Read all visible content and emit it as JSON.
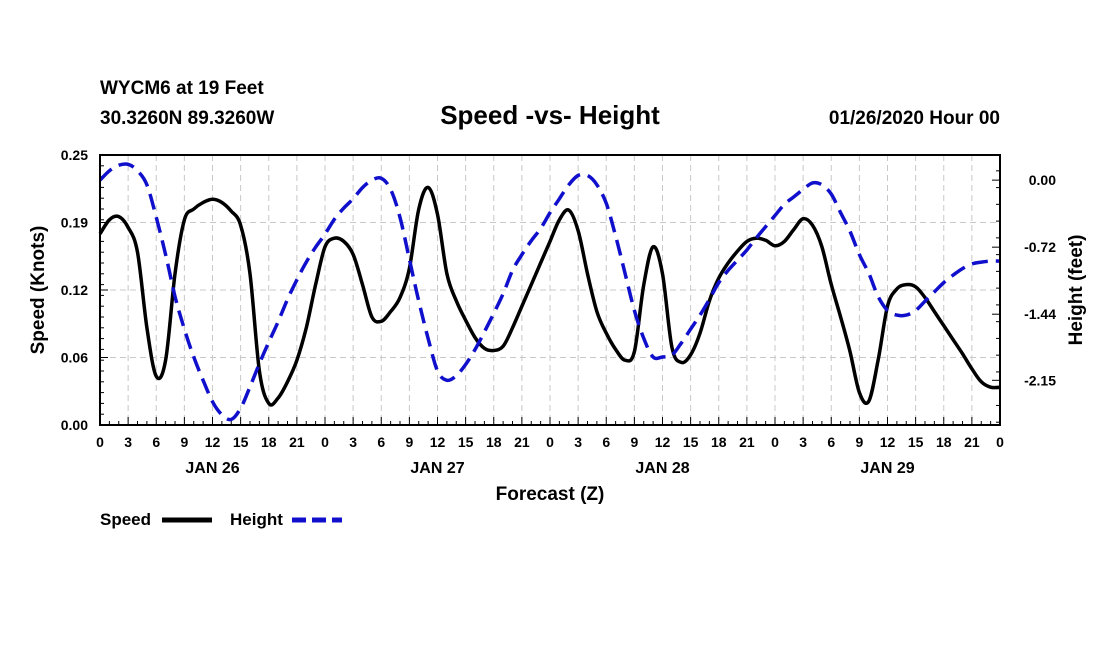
{
  "header": {
    "station_line": "WYCM6 at 19 Feet",
    "coords_line": "30.3260N 89.3260W",
    "title": "Speed -vs- Height",
    "run_time": "01/26/2020 Hour 00"
  },
  "chart_data": {
    "type": "line",
    "title": "Speed -vs- Height",
    "xlabel": "Forecast (Z)",
    "ylabel_left": "Speed (Knots)",
    "ylabel_right": "Height (feet)",
    "x_range_hours": [
      0,
      96
    ],
    "x_tick_step_hours": 3,
    "x_tick_labels": [
      "0",
      "3",
      "6",
      "9",
      "12",
      "15",
      "18",
      "21",
      "0",
      "3",
      "6",
      "9",
      "12",
      "15",
      "18",
      "21",
      "0",
      "3",
      "6",
      "9",
      "12",
      "15",
      "18",
      "21",
      "0",
      "3",
      "6",
      "9",
      "12",
      "15",
      "18",
      "21",
      "0"
    ],
    "day_labels": [
      {
        "hour": 12,
        "label": "JAN 26"
      },
      {
        "hour": 36,
        "label": "JAN 27"
      },
      {
        "hour": 60,
        "label": "JAN 28"
      },
      {
        "hour": 84,
        "label": "JAN 29"
      }
    ],
    "y_left_range": [
      0,
      0.25
    ],
    "y_left_ticks": [
      "0.00",
      "0.06",
      "0.12",
      "0.19",
      "0.25"
    ],
    "y_right_range": [
      -2.63,
      0.27
    ],
    "y_right_ticks": [
      {
        "value": 0.0,
        "label": "0.00"
      },
      {
        "value": -0.72,
        "label": "-0.72"
      },
      {
        "value": -1.44,
        "label": "-1.44"
      },
      {
        "value": -2.15,
        "label": "-2.15"
      }
    ],
    "grid": true,
    "series": [
      {
        "name": "Speed",
        "axis": "left",
        "color": "#000000",
        "dash": "solid",
        "points": [
          [
            0,
            0.177
          ],
          [
            1,
            0.19
          ],
          [
            2,
            0.193
          ],
          [
            3,
            0.183
          ],
          [
            4,
            0.16
          ],
          [
            5,
            0.09
          ],
          [
            6,
            0.045
          ],
          [
            7,
            0.06
          ],
          [
            8,
            0.14
          ],
          [
            9,
            0.19
          ],
          [
            10,
            0.2
          ],
          [
            11,
            0.206
          ],
          [
            12,
            0.209
          ],
          [
            13,
            0.206
          ],
          [
            14,
            0.198
          ],
          [
            15,
            0.185
          ],
          [
            16,
            0.14
          ],
          [
            17,
            0.05
          ],
          [
            18,
            0.02
          ],
          [
            19,
            0.025
          ],
          [
            20,
            0.04
          ],
          [
            21,
            0.06
          ],
          [
            22,
            0.09
          ],
          [
            23,
            0.13
          ],
          [
            24,
            0.165
          ],
          [
            25,
            0.173
          ],
          [
            26,
            0.17
          ],
          [
            27,
            0.158
          ],
          [
            28,
            0.13
          ],
          [
            29,
            0.1
          ],
          [
            30,
            0.096
          ],
          [
            31,
            0.105
          ],
          [
            32,
            0.118
          ],
          [
            33,
            0.145
          ],
          [
            34,
            0.2
          ],
          [
            35,
            0.22
          ],
          [
            36,
            0.195
          ],
          [
            37,
            0.14
          ],
          [
            38,
            0.115
          ],
          [
            39,
            0.097
          ],
          [
            40,
            0.081
          ],
          [
            41,
            0.071
          ],
          [
            42,
            0.069
          ],
          [
            43,
            0.073
          ],
          [
            44,
            0.09
          ],
          [
            45,
            0.11
          ],
          [
            46,
            0.13
          ],
          [
            47,
            0.15
          ],
          [
            48,
            0.17
          ],
          [
            49,
            0.19
          ],
          [
            50,
            0.199
          ],
          [
            51,
            0.18
          ],
          [
            52,
            0.14
          ],
          [
            53,
            0.105
          ],
          [
            54,
            0.085
          ],
          [
            55,
            0.07
          ],
          [
            56,
            0.06
          ],
          [
            57,
            0.068
          ],
          [
            58,
            0.13
          ],
          [
            59,
            0.165
          ],
          [
            60,
            0.14
          ],
          [
            61,
            0.072
          ],
          [
            62,
            0.058
          ],
          [
            63,
            0.065
          ],
          [
            64,
            0.085
          ],
          [
            65,
            0.115
          ],
          [
            66,
            0.136
          ],
          [
            67,
            0.15
          ],
          [
            68,
            0.161
          ],
          [
            69,
            0.17
          ],
          [
            70,
            0.173
          ],
          [
            71,
            0.171
          ],
          [
            72,
            0.166
          ],
          [
            73,
            0.17
          ],
          [
            74,
            0.181
          ],
          [
            75,
            0.191
          ],
          [
            76,
            0.185
          ],
          [
            77,
            0.165
          ],
          [
            78,
            0.13
          ],
          [
            79,
            0.1
          ],
          [
            80,
            0.068
          ],
          [
            81,
            0.03
          ],
          [
            82,
            0.022
          ],
          [
            83,
            0.06
          ],
          [
            84,
            0.11
          ],
          [
            85,
            0.126
          ],
          [
            86,
            0.13
          ],
          [
            87,
            0.128
          ],
          [
            88,
            0.118
          ],
          [
            89,
            0.105
          ],
          [
            90,
            0.092
          ],
          [
            91,
            0.079
          ],
          [
            92,
            0.066
          ],
          [
            93,
            0.052
          ],
          [
            94,
            0.04
          ],
          [
            95,
            0.035
          ],
          [
            96,
            0.035
          ]
        ]
      },
      {
        "name": "Height",
        "axis": "right",
        "color": "#1010cc",
        "dash": "dashed",
        "points": [
          [
            0,
            0.0
          ],
          [
            1,
            0.1
          ],
          [
            2,
            0.16
          ],
          [
            3,
            0.17
          ],
          [
            4,
            0.1
          ],
          [
            5,
            -0.05
          ],
          [
            6,
            -0.4
          ],
          [
            7,
            -0.8
          ],
          [
            8,
            -1.25
          ],
          [
            9,
            -1.6
          ],
          [
            10,
            -1.9
          ],
          [
            11,
            -2.15
          ],
          [
            12,
            -2.38
          ],
          [
            13,
            -2.52
          ],
          [
            14,
            -2.57
          ],
          [
            15,
            -2.45
          ],
          [
            16,
            -2.22
          ],
          [
            17,
            -1.97
          ],
          [
            18,
            -1.74
          ],
          [
            19,
            -1.52
          ],
          [
            20,
            -1.28
          ],
          [
            21,
            -1.07
          ],
          [
            22,
            -0.88
          ],
          [
            23,
            -0.72
          ],
          [
            24,
            -0.58
          ],
          [
            25,
            -0.42
          ],
          [
            26,
            -0.3
          ],
          [
            27,
            -0.2
          ],
          [
            28,
            -0.08
          ],
          [
            29,
            0.0
          ],
          [
            30,
            0.02
          ],
          [
            31,
            -0.1
          ],
          [
            32,
            -0.4
          ],
          [
            33,
            -0.85
          ],
          [
            34,
            -1.3
          ],
          [
            35,
            -1.7
          ],
          [
            36,
            -2.05
          ],
          [
            37,
            -2.15
          ],
          [
            38,
            -2.1
          ],
          [
            39,
            -1.98
          ],
          [
            40,
            -1.82
          ],
          [
            41,
            -1.63
          ],
          [
            42,
            -1.43
          ],
          [
            43,
            -1.22
          ],
          [
            44,
            -0.97
          ],
          [
            45,
            -0.8
          ],
          [
            46,
            -0.65
          ],
          [
            47,
            -0.52
          ],
          [
            48,
            -0.35
          ],
          [
            49,
            -0.2
          ],
          [
            50,
            -0.05
          ],
          [
            51,
            0.05
          ],
          [
            52,
            0.05
          ],
          [
            53,
            -0.05
          ],
          [
            54,
            -0.25
          ],
          [
            55,
            -0.6
          ],
          [
            56,
            -1.0
          ],
          [
            57,
            -1.4
          ],
          [
            58,
            -1.7
          ],
          [
            59,
            -1.9
          ],
          [
            60,
            -1.9
          ],
          [
            61,
            -1.88
          ],
          [
            62,
            -1.75
          ],
          [
            63,
            -1.6
          ],
          [
            64,
            -1.45
          ],
          [
            65,
            -1.28
          ],
          [
            66,
            -1.1
          ],
          [
            67,
            -0.97
          ],
          [
            68,
            -0.86
          ],
          [
            69,
            -0.75
          ],
          [
            70,
            -0.62
          ],
          [
            71,
            -0.5
          ],
          [
            72,
            -0.38
          ],
          [
            73,
            -0.26
          ],
          [
            74,
            -0.18
          ],
          [
            75,
            -0.1
          ],
          [
            76,
            -0.03
          ],
          [
            77,
            -0.05
          ],
          [
            78,
            -0.15
          ],
          [
            79,
            -0.35
          ],
          [
            80,
            -0.55
          ],
          [
            81,
            -0.8
          ],
          [
            82,
            -1.0
          ],
          [
            83,
            -1.25
          ],
          [
            84,
            -1.4
          ],
          [
            85,
            -1.45
          ],
          [
            86,
            -1.45
          ],
          [
            87,
            -1.4
          ],
          [
            88,
            -1.3
          ],
          [
            89,
            -1.2
          ],
          [
            90,
            -1.1
          ],
          [
            91,
            -1.02
          ],
          [
            92,
            -0.95
          ],
          [
            93,
            -0.9
          ],
          [
            94,
            -0.88
          ],
          [
            95,
            -0.87
          ],
          [
            96,
            -0.87
          ]
        ]
      }
    ]
  },
  "legend": {
    "speed_label": "Speed",
    "height_label": "Height"
  }
}
